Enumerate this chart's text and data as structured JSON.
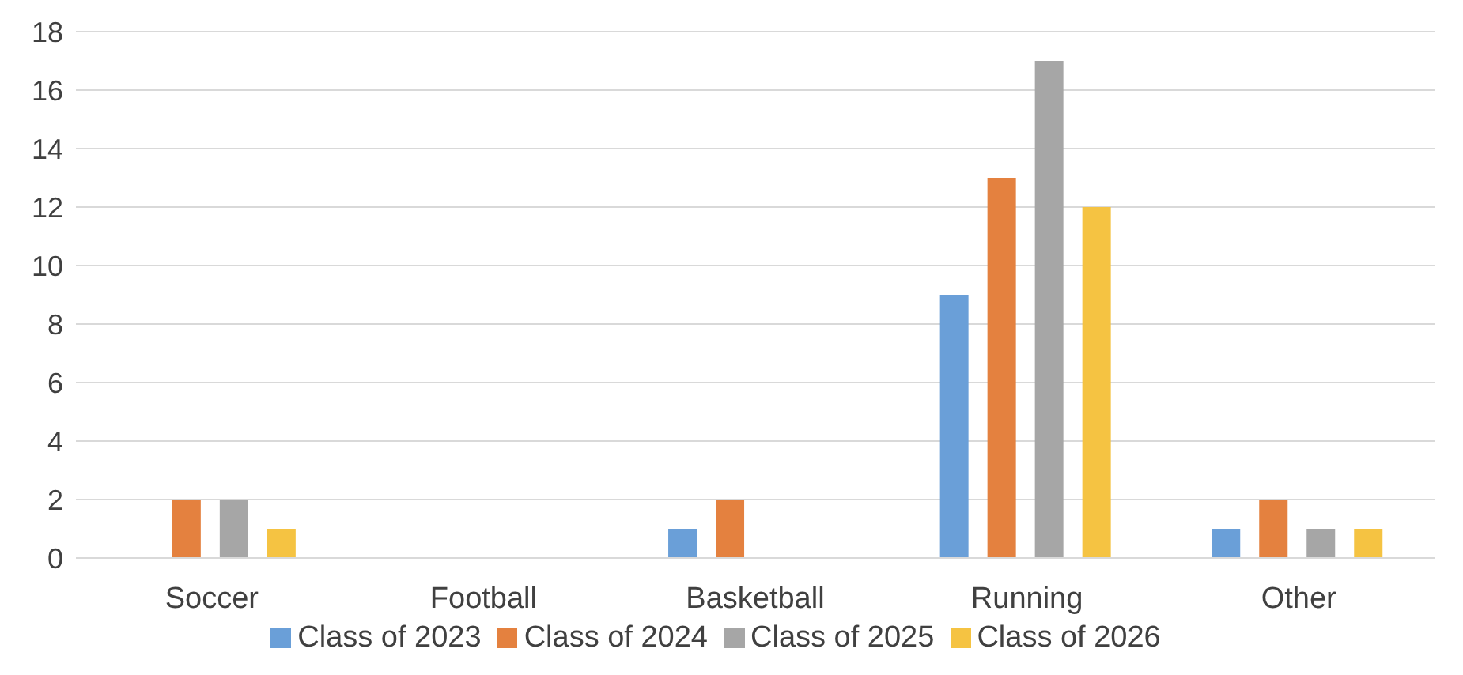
{
  "chart_data": {
    "type": "bar",
    "categories": [
      "Soccer",
      "Football",
      "Basketball",
      "Running",
      "Other"
    ],
    "series": [
      {
        "name": "Class of 2023",
        "color": "#6a9fd8",
        "values": [
          0,
          0,
          1,
          9,
          1
        ]
      },
      {
        "name": "Class of 2024",
        "color": "#e4813f",
        "values": [
          2,
          0,
          2,
          13,
          2
        ]
      },
      {
        "name": "Class of 2025",
        "color": "#a6a6a6",
        "values": [
          2,
          0,
          0,
          17,
          1
        ]
      },
      {
        "name": "Class of 2026",
        "color": "#f5c342",
        "values": [
          1,
          0,
          0,
          12,
          1
        ]
      }
    ],
    "ylim": [
      0,
      18
    ],
    "yticks": [
      0,
      2,
      4,
      6,
      8,
      10,
      12,
      14,
      16,
      18
    ],
    "grid": "y",
    "legend": "bottom"
  }
}
